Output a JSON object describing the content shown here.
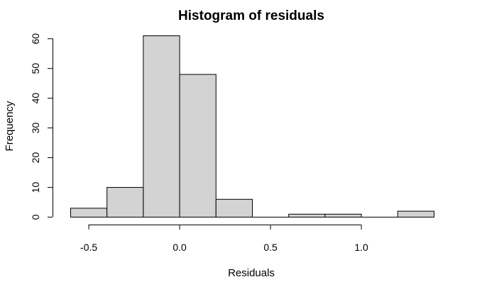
{
  "chart_data": {
    "type": "bar",
    "title": "Histogram of residuals",
    "xlabel": "Residuals",
    "ylabel": "Frequency",
    "bins": [
      {
        "x0": -0.6,
        "x1": -0.4,
        "count": 3
      },
      {
        "x0": -0.4,
        "x1": -0.2,
        "count": 10
      },
      {
        "x0": -0.2,
        "x1": 0.0,
        "count": 61
      },
      {
        "x0": 0.0,
        "x1": 0.2,
        "count": 48
      },
      {
        "x0": 0.2,
        "x1": 0.4,
        "count": 6
      },
      {
        "x0": 0.4,
        "x1": 0.6,
        "count": 0
      },
      {
        "x0": 0.6,
        "x1": 0.8,
        "count": 1
      },
      {
        "x0": 0.8,
        "x1": 1.0,
        "count": 1
      },
      {
        "x0": 1.0,
        "x1": 1.2,
        "count": 0
      },
      {
        "x0": 1.2,
        "x1": 1.4,
        "count": 2
      }
    ],
    "xlim": [
      -0.6,
      1.4
    ],
    "ylim": [
      0,
      61
    ],
    "x_ticks": [
      -0.5,
      0.0,
      0.5,
      1.0
    ],
    "x_tick_labels": [
      "-0.5",
      "0.0",
      "0.5",
      "1.0"
    ],
    "y_ticks": [
      0,
      10,
      20,
      30,
      40,
      50,
      60
    ],
    "y_tick_labels": [
      "0",
      "10",
      "20",
      "30",
      "40",
      "50",
      "60"
    ],
    "grid": false,
    "bar_fill": "#d3d3d3",
    "bar_stroke": "#000000"
  }
}
